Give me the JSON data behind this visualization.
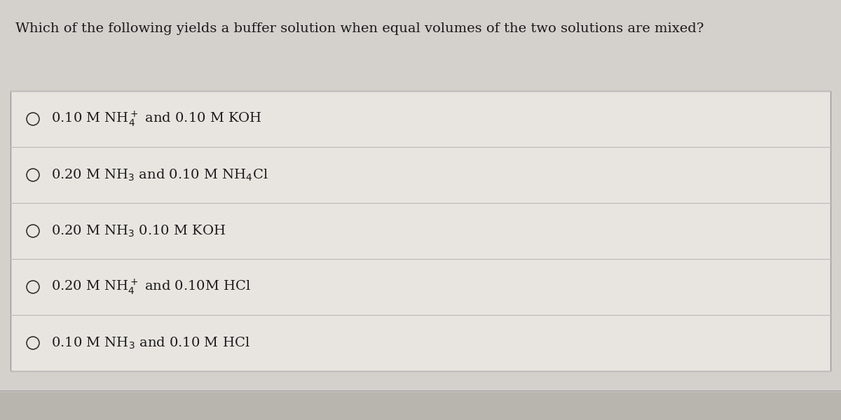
{
  "title": "Which of the following yields a buffer solution when equal volumes of the two solutions are mixed?",
  "options": [
    "0.10 M NH$_4^+$ and 0.10 M KOH",
    "0.20 M NH$_3$ and 0.10 M NH$_4$Cl",
    "0.20 M NH$_3$ 0.10 M KOH",
    "0.20 M NH$_4^+$ and 0.10M HCl",
    "0.10 M NH$_3$ and 0.10 M HCl"
  ],
  "bg_color": "#d4d0cc",
  "main_box_color": "#e8e5e0",
  "border_color": "#999999",
  "text_color": "#1a1a1a",
  "title_fontsize": 14,
  "option_fontsize": 14,
  "circle_color": "#333333",
  "line_color": "#bbbbbb",
  "bottom_bar_color": "#b8b4ae"
}
